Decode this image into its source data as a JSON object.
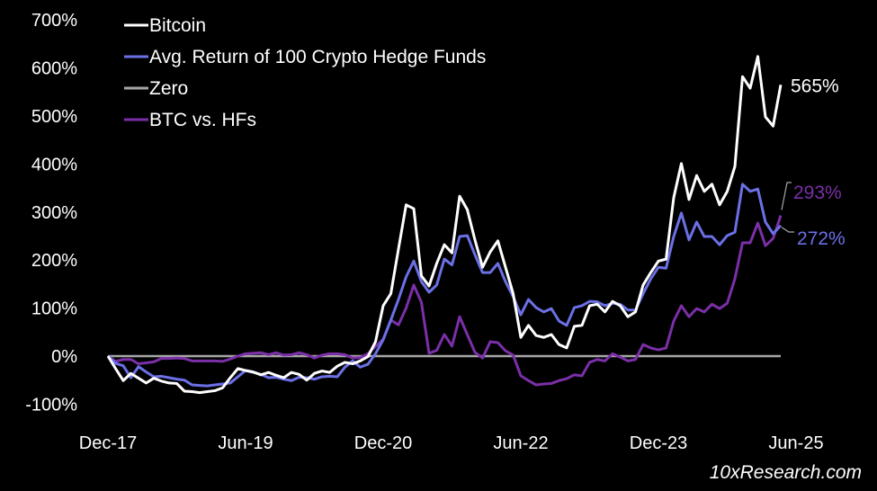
{
  "chart_data": {
    "type": "line",
    "title": "",
    "xlabel": "",
    "ylabel": "",
    "x_start": "Dec-17",
    "x_end": "Apr-25",
    "frequency": "monthly",
    "xticks": [
      "Dec-17",
      "Jun-19",
      "Dec-20",
      "Jun-22",
      "Dec-23",
      "Jun-25"
    ],
    "yticks": [
      "-100%",
      "0%",
      "100%",
      "200%",
      "300%",
      "400%",
      "500%",
      "600%",
      "700%"
    ],
    "ylim": [
      -100,
      700
    ],
    "grid": false,
    "legend_placement": "top-left",
    "series": [
      {
        "name": "Bitcoin",
        "color": "#ffffff",
        "end_label": "565%",
        "values": [
          0,
          -26,
          -51,
          -36,
          -46,
          -56,
          -46,
          -52,
          -56,
          -57,
          -73,
          -74,
          -76,
          -74,
          -72,
          -66,
          -45,
          -26,
          -30,
          -33,
          -39,
          -34,
          -40,
          -45,
          -34,
          -38,
          -50,
          -36,
          -31,
          -34,
          -21,
          -13,
          -16,
          -10,
          -1,
          30,
          105,
          130,
          223,
          315,
          307,
          167,
          146,
          193,
          232,
          215,
          333,
          305,
          242,
          185,
          217,
          240,
          185,
          130,
          39,
          64,
          43,
          39,
          45,
          24,
          17,
          62,
          64,
          105,
          108,
          92,
          114,
          105,
          82,
          92,
          148,
          174,
          198,
          202,
          330,
          401,
          326,
          376,
          343,
          358,
          315,
          343,
          395,
          582,
          558,
          624,
          498,
          479,
          565
        ]
      },
      {
        "name": "Avg. Return of 100 Crypto Hedge Funds",
        "color": "#6b70e6",
        "end_label": "272%",
        "values": [
          0,
          -15,
          -20,
          -45,
          -22,
          -33,
          -43,
          -42,
          -45,
          -48,
          -50,
          -60,
          -61,
          -62,
          -60,
          -58,
          -56,
          -43,
          -30,
          -34,
          -38,
          -45,
          -44,
          -48,
          -51,
          -44,
          -45,
          -48,
          -43,
          -42,
          -43,
          -23,
          -10,
          -23,
          -17,
          5,
          34,
          75,
          118,
          165,
          198,
          155,
          133,
          148,
          202,
          190,
          249,
          251,
          211,
          174,
          174,
          193,
          155,
          124,
          86,
          118,
          101,
          92,
          99,
          73,
          64,
          101,
          105,
          114,
          113,
          105,
          110,
          108,
          96,
          96,
          130,
          161,
          185,
          183,
          249,
          298,
          242,
          279,
          249,
          249,
          232,
          251,
          258,
          358,
          343,
          348,
          279,
          255,
          272
        ]
      },
      {
        "name": "Zero",
        "color": "#a6a6a6",
        "values": [
          0,
          0
        ]
      },
      {
        "name": "BTC vs. HFs",
        "color": "#7b2fa8",
        "end_label": "293%",
        "values": [
          0,
          -11,
          -7,
          -7,
          -16,
          -14,
          -12,
          -5,
          -5,
          -4,
          -5,
          -10,
          -10,
          -10,
          -10,
          -11,
          -6,
          0,
          5,
          6,
          7,
          3,
          7,
          2,
          3,
          7,
          3,
          -4,
          2,
          5,
          5,
          3,
          -4,
          -3,
          5,
          20,
          35,
          75,
          65,
          100,
          148,
          112,
          6,
          12,
          45,
          21,
          82,
          45,
          8,
          -4,
          30,
          28,
          11,
          2,
          -41,
          -51,
          -60,
          -58,
          -57,
          -51,
          -47,
          -39,
          -41,
          -13,
          -7,
          -10,
          5,
          -2,
          -10,
          -7,
          24,
          17,
          13,
          17,
          73,
          105,
          82,
          99,
          92,
          108,
          99,
          110,
          161,
          236,
          236,
          277,
          230,
          245,
          293
        ]
      }
    ]
  },
  "watermark": "10xResearch.com"
}
